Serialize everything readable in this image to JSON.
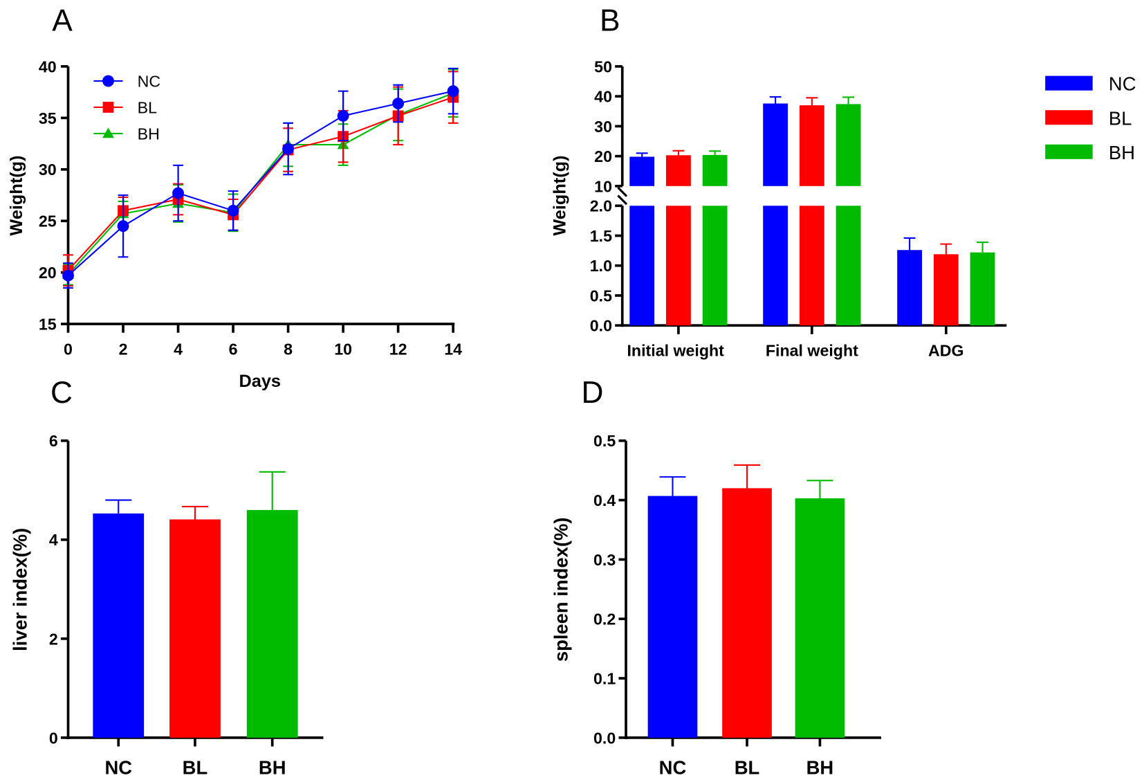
{
  "colors": {
    "NC": "#0000ff",
    "BL": "#ff0000",
    "BH": "#00bb00",
    "axis": "#000000"
  },
  "chart_data": [
    {
      "panel": "A",
      "type": "line",
      "xlabel": "Days",
      "ylabel": "Weight(g)",
      "x": [
        0,
        2,
        4,
        6,
        8,
        10,
        12,
        14
      ],
      "xticks": [
        "0",
        "2",
        "4",
        "6",
        "8",
        "10",
        "12",
        "14"
      ],
      "yticks": [
        "15",
        "20",
        "25",
        "30",
        "35",
        "40"
      ],
      "ylim": [
        15,
        40
      ],
      "legend": "top-left",
      "series": [
        {
          "name": "NC",
          "marker": "circle",
          "values": [
            19.7,
            24.5,
            27.7,
            26.0,
            32.0,
            35.2,
            36.4,
            37.6
          ],
          "errors": [
            1.2,
            3.0,
            2.7,
            1.9,
            2.5,
            2.4,
            1.8,
            2.2
          ]
        },
        {
          "name": "BL",
          "marker": "square",
          "values": [
            20.2,
            26.0,
            27.1,
            25.6,
            31.9,
            33.2,
            35.2,
            37.0
          ],
          "errors": [
            1.5,
            1.3,
            1.5,
            1.5,
            2.1,
            2.5,
            2.8,
            2.5
          ]
        },
        {
          "name": "BH",
          "marker": "triangle",
          "values": [
            19.8,
            25.7,
            26.7,
            25.8,
            32.4,
            32.4,
            35.3,
            37.4
          ],
          "errors": [
            1.0,
            1.2,
            1.8,
            1.8,
            2.1,
            2.0,
            2.5,
            2.3
          ]
        }
      ]
    },
    {
      "panel": "B",
      "type": "bar",
      "ylabel": "Weight(g)",
      "categories": [
        "Initial weight",
        "Final weight",
        "ADG"
      ],
      "yticks_lower": [
        "0.0",
        "0.5",
        "1.0",
        "1.5",
        "2.0"
      ],
      "yticks_upper": [
        "10",
        "20",
        "30",
        "40",
        "50"
      ],
      "ylim_lower": [
        0,
        2
      ],
      "ylim_upper": [
        10,
        50
      ],
      "legend": "right",
      "series": [
        {
          "name": "NC",
          "values": [
            19.8,
            37.6,
            1.26
          ],
          "errors": [
            1.2,
            2.2,
            0.2
          ]
        },
        {
          "name": "BL",
          "values": [
            20.3,
            37.0,
            1.19
          ],
          "errors": [
            1.5,
            2.5,
            0.17
          ]
        },
        {
          "name": "BH",
          "values": [
            20.4,
            37.4,
            1.22
          ],
          "errors": [
            1.3,
            2.3,
            0.17
          ]
        }
      ]
    },
    {
      "panel": "C",
      "type": "bar",
      "ylabel": "liver index(%)",
      "categories": [
        "NC",
        "BL",
        "BH"
      ],
      "yticks": [
        "0",
        "2",
        "4",
        "6"
      ],
      "ylim": [
        0,
        6
      ],
      "values": [
        4.53,
        4.41,
        4.6
      ],
      "errors": [
        0.27,
        0.26,
        0.77
      ]
    },
    {
      "panel": "D",
      "type": "bar",
      "ylabel": "spleen index(%)",
      "categories": [
        "NC",
        "BL",
        "BH"
      ],
      "yticks": [
        "0.0",
        "0.1",
        "0.2",
        "0.3",
        "0.4",
        "0.5"
      ],
      "ylim": [
        0,
        0.5
      ],
      "values": [
        0.407,
        0.42,
        0.403
      ],
      "errors": [
        0.032,
        0.039,
        0.03
      ]
    }
  ]
}
